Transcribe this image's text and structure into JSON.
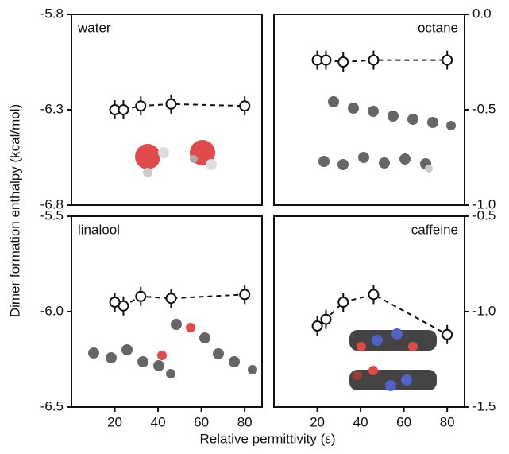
{
  "axis_labels": {
    "x": "Relative permittivity (ε)",
    "y": "Dimer formation enthalpy (kcal/mol)"
  },
  "chart_data": [
    {
      "type": "line",
      "title": "water",
      "color": "#111111",
      "x": [
        20,
        24,
        32,
        46,
        80
      ],
      "values": [
        -6.3,
        -6.3,
        -6.28,
        -6.27,
        -6.28
      ],
      "errors": [
        0.05,
        0.05,
        0.05,
        0.05,
        0.05
      ],
      "xlim": [
        0,
        88
      ],
      "ylim": [
        -6.8,
        -5.8
      ],
      "yticks": [
        -6.8,
        -6.3,
        -5.8
      ]
    },
    {
      "type": "line",
      "title": "octane",
      "color": "#111111",
      "x": [
        20,
        24,
        32,
        46,
        80
      ],
      "values": [
        -0.24,
        -0.24,
        -0.25,
        -0.24,
        -0.24
      ],
      "errors": [
        0.05,
        0.05,
        0.05,
        0.05,
        0.05
      ],
      "xlim": [
        0,
        88
      ],
      "ylim": [
        -1.0,
        0.0
      ],
      "yticks": [
        {
          "value": -1.0,
          "label": "-1.0"
        },
        -0.5,
        {
          "value": 0.0,
          "label": "0.0"
        }
      ]
    },
    {
      "type": "line",
      "title": "linalool",
      "color": "#111111",
      "x": [
        20,
        24,
        32,
        46,
        80
      ],
      "values": [
        -5.95,
        -5.97,
        -5.92,
        -5.93,
        -5.91
      ],
      "errors": [
        0.05,
        0.05,
        0.05,
        0.05,
        0.05
      ],
      "xlim": [
        0,
        88
      ],
      "ylim": [
        -6.5,
        -5.5
      ],
      "yticks": [
        -6.5,
        {
          "value": -6.0,
          "label": "-6.0"
        },
        -5.5
      ],
      "xticks": [
        20,
        40,
        60,
        80
      ]
    },
    {
      "type": "line",
      "title": "caffeine",
      "color": "#111111",
      "x": [
        20,
        24,
        32,
        46,
        80
      ],
      "values": [
        -1.075,
        -1.04,
        -0.95,
        -0.91,
        -1.12
      ],
      "errors": [
        0.05,
        0.05,
        0.05,
        0.05,
        0.05
      ],
      "xlim": [
        0,
        88
      ],
      "ylim": [
        -1.5,
        -0.5
      ],
      "yticks": [
        -1.5,
        {
          "value": -1.0,
          "label": "-1.0"
        },
        -0.5
      ],
      "xticks": [
        20,
        40,
        60,
        80
      ]
    }
  ]
}
